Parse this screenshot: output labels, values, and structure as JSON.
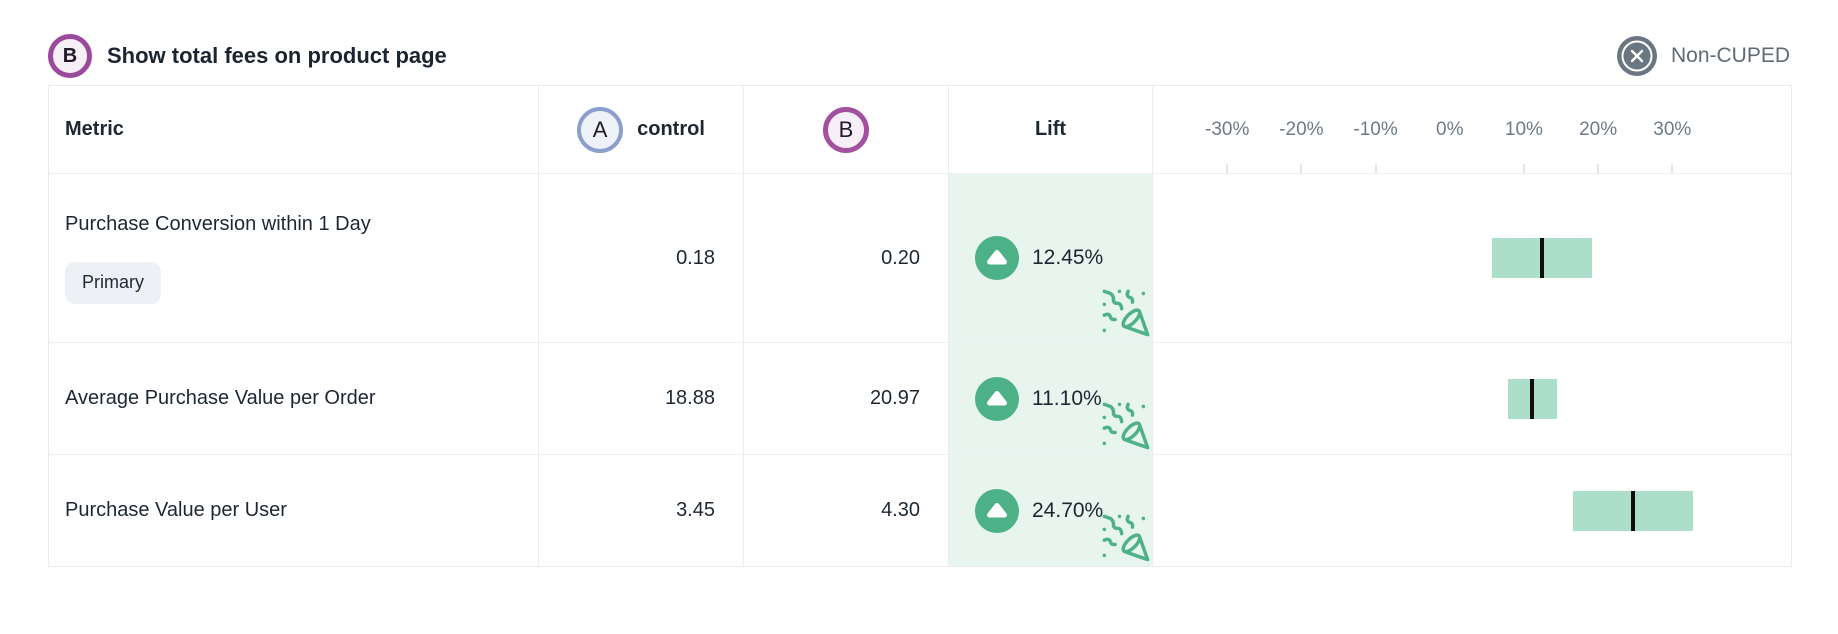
{
  "header": {
    "variant_badge": "B",
    "title": "Show total fees on product page",
    "cuped_toggle": {
      "icon": "circle-x-icon",
      "label": "Non-CUPED"
    }
  },
  "table": {
    "columns": {
      "metric": "Metric",
      "control_badge": "A",
      "control_label": "control",
      "variant_badge": "B",
      "lift": "Lift"
    },
    "rows": [
      {
        "metric": "Purchase Conversion within 1 Day",
        "tag": "Primary",
        "control": "0.18",
        "variant": "0.20",
        "lift": "12.45%",
        "direction": "up",
        "celebration": true
      },
      {
        "metric": "Average Purchase Value per Order",
        "control": "18.88",
        "variant": "20.97",
        "lift": "11.10%",
        "direction": "up",
        "celebration": true
      },
      {
        "metric": "Purchase Value per User",
        "control": "3.45",
        "variant": "4.30",
        "lift": "24.70%",
        "direction": "up",
        "celebration": true
      }
    ]
  },
  "chart_data": {
    "type": "bar",
    "subtype": "confidence-interval",
    "orientation": "horizontal",
    "title": "Lift",
    "categories": [
      "Purchase Conversion within 1 Day",
      "Average Purchase Value per Order",
      "Purchase Value per User"
    ],
    "series": [
      {
        "name": "lift_pct",
        "values": [
          12.45,
          11.1,
          24.7
        ]
      },
      {
        "name": "ci_low_pct",
        "values": [
          5.7,
          7.8,
          16.6
        ]
      },
      {
        "name": "ci_high_pct",
        "values": [
          19.2,
          14.4,
          32.8
        ]
      }
    ],
    "ticks": [
      -30,
      -20,
      -10,
      0,
      10,
      20,
      30
    ],
    "tick_labels": [
      "-30%",
      "-20%",
      "-10%",
      "0%",
      "10%",
      "20%",
      "30%"
    ],
    "xlim": [
      -40,
      46
    ],
    "zero_tick_hidden": true,
    "grid": false,
    "legend": false
  },
  "colors": {
    "variant_purple": "#9e4d9c",
    "control_blue": "#8c9ecb",
    "positive_green": "#4cb186",
    "party_icon_green": "#4fb287",
    "lift_cell_bg": "#e8f4ee",
    "ci_bar": "#abdfc9",
    "ci_center_line": "#0c0e10",
    "muted_gray": "#5f6b76",
    "icon_gray": "#6b7683",
    "border": "#e9edf0"
  }
}
